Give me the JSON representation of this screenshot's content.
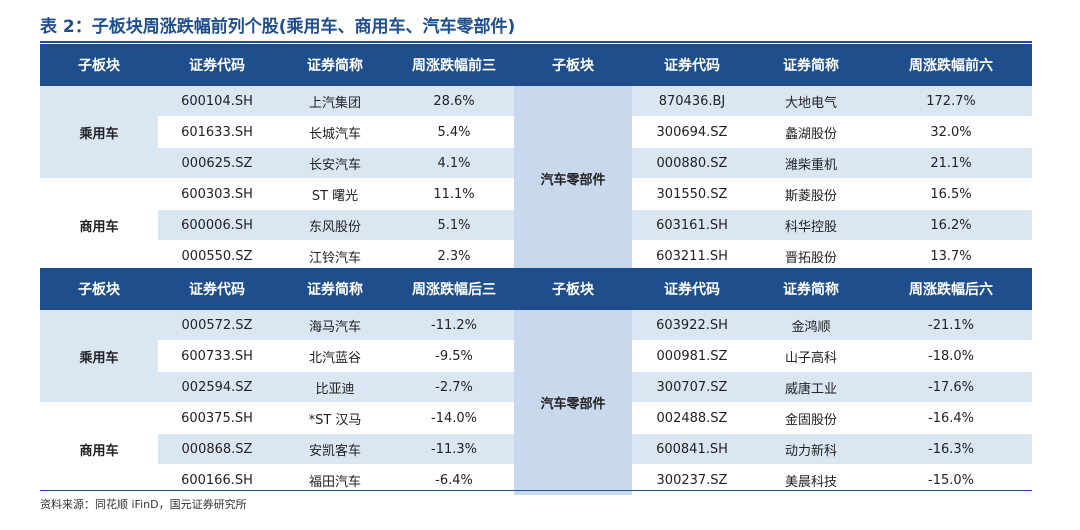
{
  "title": "表 2：子板块周涨跌幅前列个股(乘用车、商用车、汽车零部件)",
  "source": "资料来源：同花顺 iFinD，国元证券研究所",
  "top": {
    "headers": [
      "子板块",
      "证券代码",
      "证券简称",
      "周涨跌幅前三",
      "子板块",
      "证券代码",
      "证券简称",
      "周涨跌幅前六"
    ],
    "left_segments": [
      "乘用车",
      "商用车"
    ],
    "right_segment": "汽车零部件",
    "rows": [
      {
        "lcode": "600104.SH",
        "lname": "上汽集团",
        "lchg": "28.6%",
        "rcode": "870436.BJ",
        "rname": "大地电气",
        "rchg": "172.7%"
      },
      {
        "lcode": "601633.SH",
        "lname": "长城汽车",
        "lchg": "5.4%",
        "rcode": "300694.SZ",
        "rname": "蠡湖股份",
        "rchg": "32.0%"
      },
      {
        "lcode": "000625.SZ",
        "lname": "长安汽车",
        "lchg": "4.1%",
        "rcode": "000880.SZ",
        "rname": "潍柴重机",
        "rchg": "21.1%"
      },
      {
        "lcode": "600303.SH",
        "lname": "ST 曙光",
        "lchg": "11.1%",
        "rcode": "301550.SZ",
        "rname": "斯菱股份",
        "rchg": "16.5%"
      },
      {
        "lcode": "600006.SH",
        "lname": "东风股份",
        "lchg": "5.1%",
        "rcode": "603161.SH",
        "rname": "科华控股",
        "rchg": "16.2%"
      },
      {
        "lcode": "000550.SZ",
        "lname": "江铃汽车",
        "lchg": "2.3%",
        "rcode": "603211.SH",
        "rname": "晋拓股份",
        "rchg": "13.7%"
      }
    ]
  },
  "bottom": {
    "headers": [
      "子板块",
      "证券代码",
      "证券简称",
      "周涨跌幅后三",
      "子板块",
      "证券代码",
      "证券简称",
      "周涨跌幅后六"
    ],
    "left_segments": [
      "乘用车",
      "商用车"
    ],
    "right_segment": "汽车零部件",
    "rows": [
      {
        "lcode": "000572.SZ",
        "lname": "海马汽车",
        "lchg": "-11.2%",
        "rcode": "603922.SH",
        "rname": "金鸿顺",
        "rchg": "-21.1%"
      },
      {
        "lcode": "600733.SH",
        "lname": "北汽蓝谷",
        "lchg": "-9.5%",
        "rcode": "000981.SZ",
        "rname": "山子高科",
        "rchg": "-18.0%"
      },
      {
        "lcode": "002594.SZ",
        "lname": "比亚迪",
        "lchg": "-2.7%",
        "rcode": "300707.SZ",
        "rname": "威唐工业",
        "rchg": "-17.6%"
      },
      {
        "lcode": "600375.SH",
        "lname": "*ST 汉马",
        "lchg": "-14.0%",
        "rcode": "002488.SZ",
        "rname": "金固股份",
        "rchg": "-16.4%"
      },
      {
        "lcode": "000868.SZ",
        "lname": "安凯客车",
        "lchg": "-11.3%",
        "rcode": "600841.SH",
        "rname": "动力新科",
        "rchg": "-16.3%"
      },
      {
        "lcode": "600166.SH",
        "lname": "福田汽车",
        "lchg": "-6.4%",
        "rcode": "300237.SZ",
        "rname": "美晨科技",
        "rchg": "-15.0%"
      }
    ]
  },
  "colors": {
    "header": "#1f4e8c",
    "band": "#dbe6f3",
    "mid": "#c9d9ed"
  }
}
